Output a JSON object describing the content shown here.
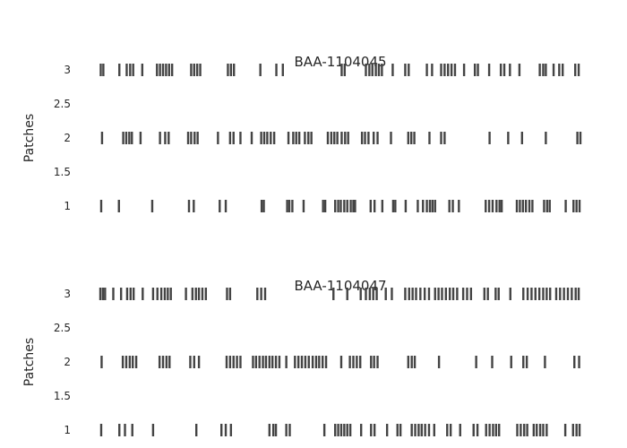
{
  "chart_data": [
    {
      "type": "event-raster",
      "title": "BAA-1104045",
      "ylabel": "Patches",
      "yticks": [
        "1",
        "1.5",
        "2",
        "2.5",
        "3"
      ],
      "ylim": [
        0.75,
        3.25
      ],
      "grid": false,
      "legend": "none",
      "series": [
        {
          "y": 1,
          "events": [
            0.4,
            4.5,
            12.2,
            20.7,
            21.8,
            27.8,
            29.2,
            37.5,
            38.0,
            43.4,
            43.9,
            44.6,
            47.2,
            51.7,
            52.2,
            54.5,
            55.2,
            55.8,
            56.6,
            57.3,
            58.1,
            58.7,
            59.1,
            62.7,
            63.6,
            65.4,
            67.9,
            68.4,
            70.8,
            73.6,
            74.8,
            75.7,
            76.4,
            77.0,
            77.6,
            80.9,
            81.7,
            83.1,
            89.3,
            90.1,
            90.9,
            91.8,
            92.5,
            93.0,
            96.5,
            97.2,
            97.9,
            98.6,
            99.4,
            100.1,
            102.8,
            103.5,
            104.1,
            107.8,
            109.6,
            110.3,
            111.0
          ]
        },
        {
          "y": 2,
          "events": [
            0.6,
            5.5,
            6.2,
            6.9,
            7.5,
            9.5,
            14.0,
            15.2,
            16.0,
            20.5,
            21.2,
            22.0,
            22.7,
            27.4,
            30.2,
            31.0,
            32.6,
            35.2,
            37.4,
            38.1,
            38.8,
            39.6,
            40.4,
            43.7,
            44.8,
            45.5,
            46.2,
            47.5,
            48.3,
            49.0,
            52.8,
            53.6,
            54.3,
            55.0,
            56.0,
            56.8,
            57.5,
            60.7,
            61.4,
            62.2,
            63.4,
            64.3,
            67.4,
            71.4,
            72.1,
            72.8,
            76.3,
            79.0,
            79.8,
            90.2,
            94.5,
            97.7,
            103.2,
            110.5,
            111.2
          ]
        },
        {
          "y": 3,
          "events": [
            0.3,
            0.9,
            4.6,
            6.3,
            7.1,
            7.8,
            9.9,
            13.3,
            14.0,
            14.7,
            15.4,
            16.1,
            16.8,
            21.2,
            21.9,
            22.6,
            23.3,
            29.7,
            30.4,
            31.1,
            37.2,
            40.9,
            42.4,
            56.0,
            56.7,
            61.6,
            62.4,
            63.1,
            63.9,
            64.6,
            65.3,
            67.8,
            70.7,
            71.5,
            75.7,
            76.9,
            79.0,
            79.8,
            80.6,
            81.4,
            82.2,
            84.3,
            86.8,
            87.5,
            90.1,
            92.8,
            93.6,
            94.9,
            97.1,
            101.8,
            102.6,
            103.2,
            105.0,
            106.3,
            107.1,
            110.0,
            110.8
          ]
        }
      ]
    },
    {
      "type": "event-raster",
      "title": "BAA-1104047",
      "ylabel": "Patches",
      "yticks": [
        "1",
        "1.5",
        "2",
        "2.5",
        "3"
      ],
      "ylim": [
        0.75,
        3.25
      ],
      "grid": false,
      "legend": "none",
      "series": [
        {
          "y": 1,
          "events": [
            0.4,
            4.6,
            5.9,
            7.6,
            12.4,
            22.4,
            28.2,
            29.2,
            30.4,
            39.3,
            40.2,
            40.8,
            43.2,
            44.0,
            52.0,
            54.5,
            55.2,
            55.9,
            56.6,
            57.3,
            58.0,
            60.5,
            62.8,
            63.6,
            66.5,
            68.9,
            69.6,
            72.2,
            73.0,
            73.8,
            74.5,
            75.3,
            76.2,
            77.4,
            80.4,
            81.2,
            83.4,
            86.5,
            87.4,
            89.4,
            90.2,
            91.0,
            91.7,
            92.4,
            96.6,
            97.4,
            98.2,
            98.9,
            100.4,
            101.1,
            101.9,
            102.6,
            103.4,
            107.7,
            109.5,
            110.3,
            111.0
          ]
        },
        {
          "y": 2,
          "events": [
            0.5,
            5.4,
            6.2,
            7.0,
            7.7,
            8.5,
            13.9,
            14.7,
            15.5,
            16.2,
            21.0,
            21.9,
            23.0,
            29.4,
            30.2,
            31.0,
            31.8,
            32.6,
            35.5,
            36.2,
            37.0,
            37.8,
            38.5,
            39.3,
            40.0,
            40.8,
            41.6,
            43.2,
            45.2,
            46.0,
            46.8,
            47.6,
            48.4,
            49.3,
            50.1,
            50.8,
            51.6,
            52.4,
            55.9,
            57.9,
            58.7,
            59.5,
            60.3,
            62.8,
            63.5,
            64.3,
            71.4,
            72.2,
            72.9,
            78.5,
            87.1,
            90.8,
            95.2,
            98.0,
            98.8,
            103.0,
            109.8,
            110.9
          ]
        },
        {
          "y": 3,
          "events": [
            0.2,
            0.8,
            1.3,
            3.2,
            5.0,
            6.4,
            7.2,
            7.9,
            10.0,
            12.4,
            13.4,
            14.3,
            15.1,
            15.8,
            16.5,
            20.0,
            21.5,
            22.3,
            23.0,
            23.8,
            24.6,
            29.5,
            30.2,
            36.5,
            37.4,
            38.3,
            54.1,
            57.3,
            60.4,
            61.6,
            62.5,
            63.3,
            64.1,
            66.2,
            67.6,
            70.7,
            71.6,
            72.4,
            73.2,
            74.2,
            75.2,
            76.2,
            77.6,
            78.4,
            79.2,
            80.1,
            81.0,
            81.8,
            82.7,
            84.1,
            85.0,
            85.9,
            89.0,
            89.8,
            91.6,
            92.3,
            95.0,
            98.0,
            99.0,
            99.9,
            100.8,
            101.7,
            102.6,
            103.4,
            104.2,
            105.6,
            106.5,
            107.4,
            108.3,
            109.2,
            110.1,
            110.8
          ]
        }
      ]
    }
  ]
}
